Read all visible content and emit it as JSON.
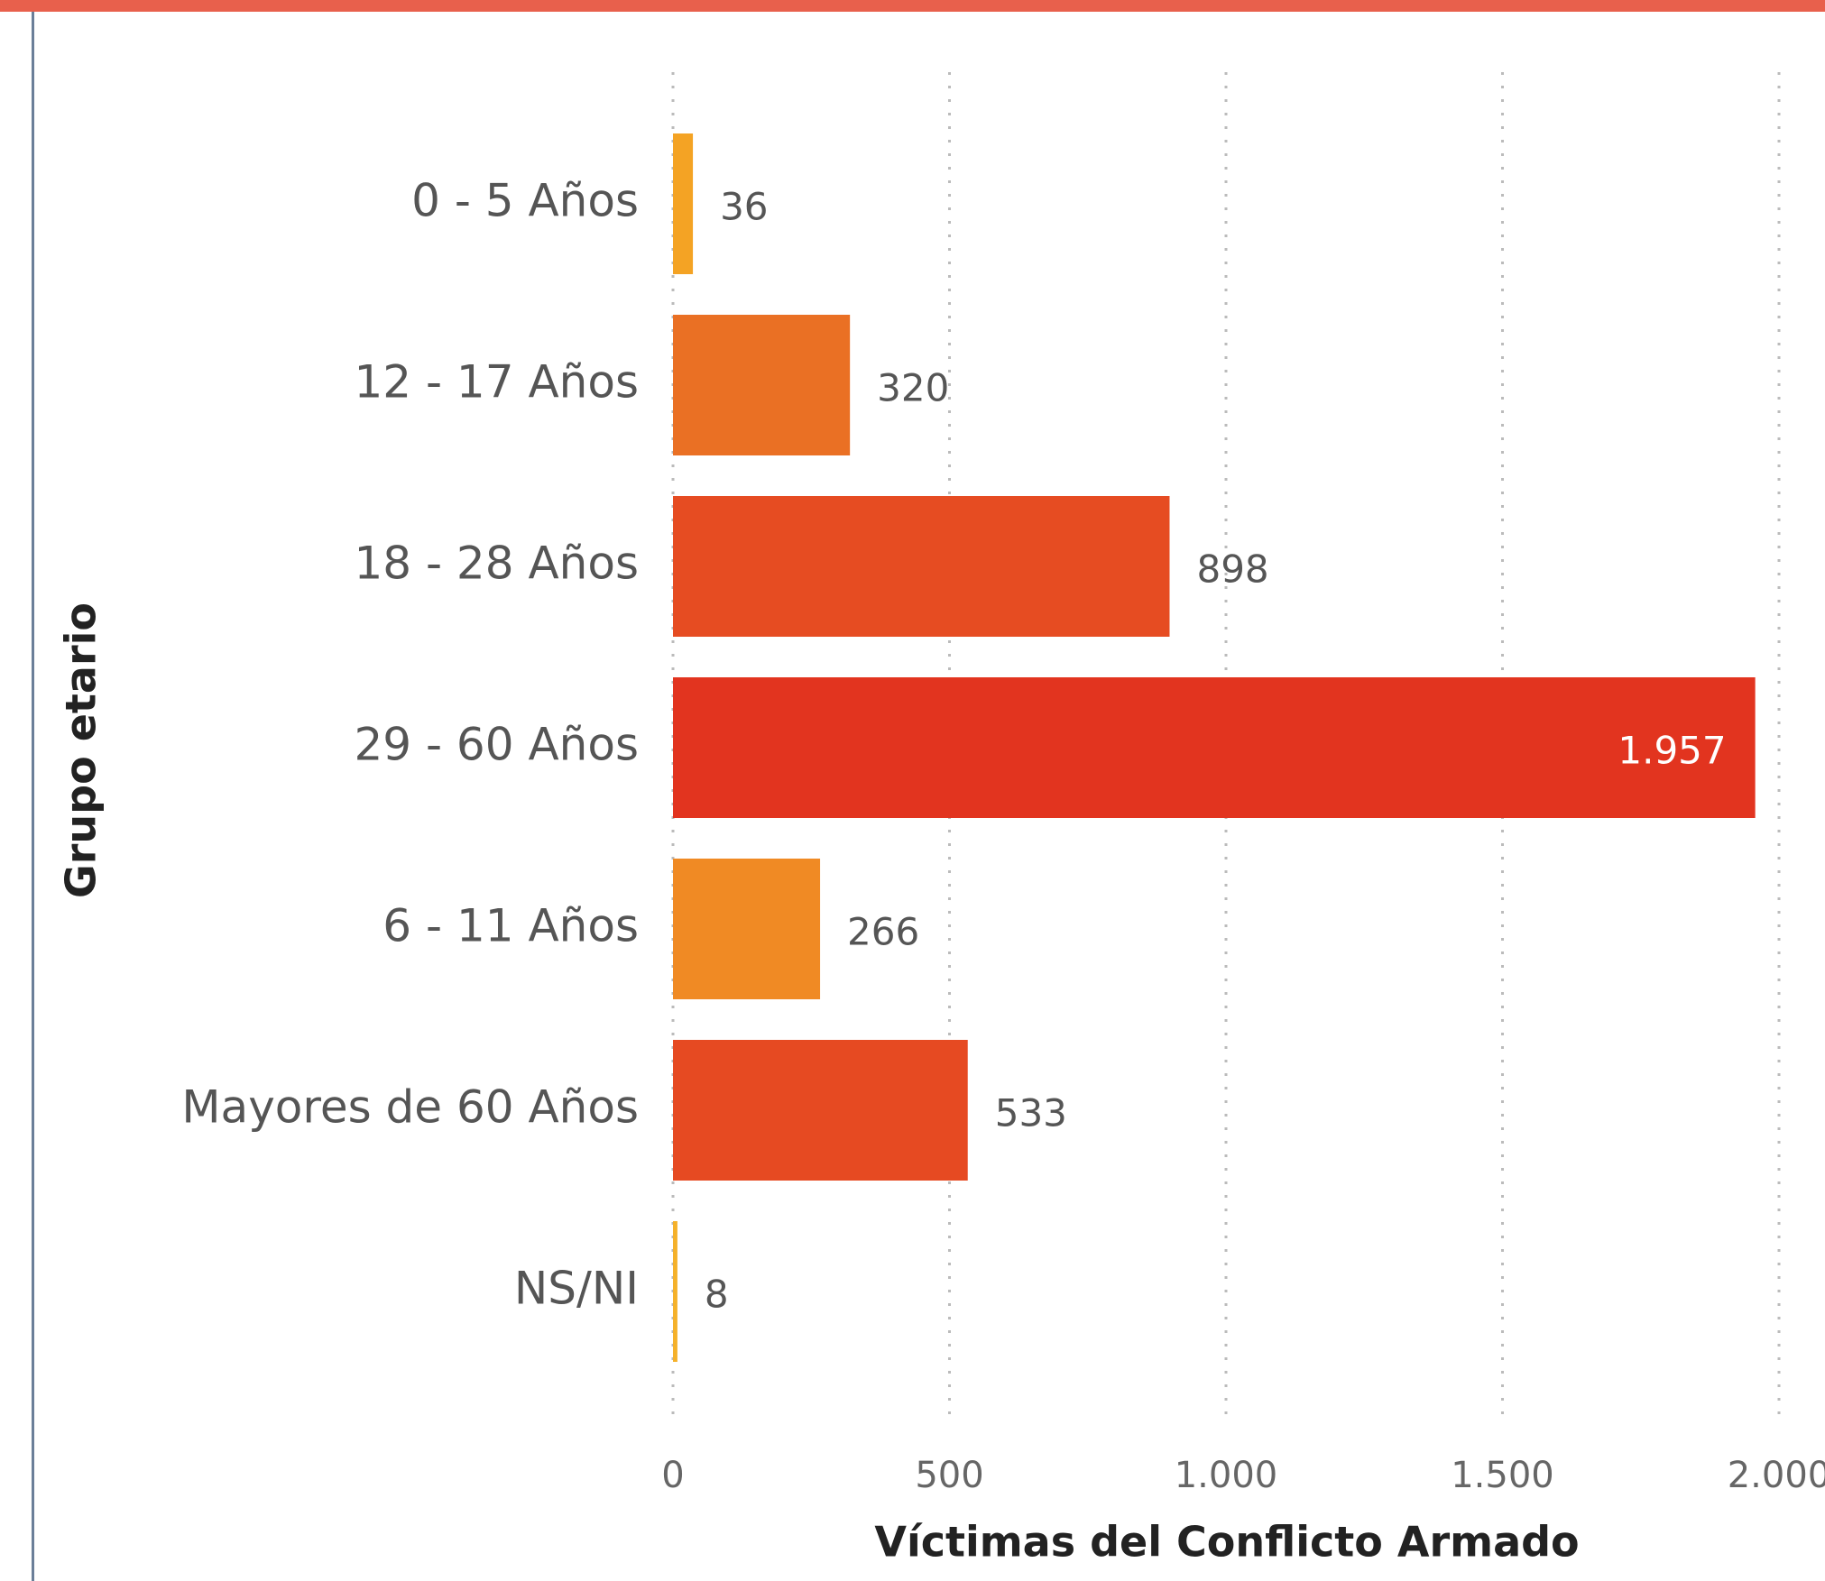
{
  "chart_data": {
    "type": "bar",
    "orientation": "horizontal",
    "categories": [
      "0 - 5 Años",
      "12 - 17 Años",
      "18 - 28 Años",
      "29 - 60 Años",
      "6 - 11 Años",
      "Mayores de 60 Años",
      "NS/NI"
    ],
    "values": [
      36,
      320,
      898,
      1957,
      266,
      533,
      8
    ],
    "value_labels": [
      "36",
      "320",
      "898",
      "1.957",
      "266",
      "533",
      "8"
    ],
    "colors": [
      "#f4a324",
      "#ea7024",
      "#e64c22",
      "#e2341f",
      "#f08a24",
      "#e64a22",
      "#f5b12a"
    ],
    "xlim": [
      0,
      2000
    ],
    "xticks": [
      0,
      500,
      {
        "value": 1000,
        "label": "1.000"
      },
      {
        "value": 1500,
        "label": "1.500"
      },
      {
        "value": 2000,
        "label": "2.000"
      }
    ],
    "xlabel": "Víctimas del Conflicto Armado",
    "ylabel": "Grupo etario",
    "grid": true
  }
}
